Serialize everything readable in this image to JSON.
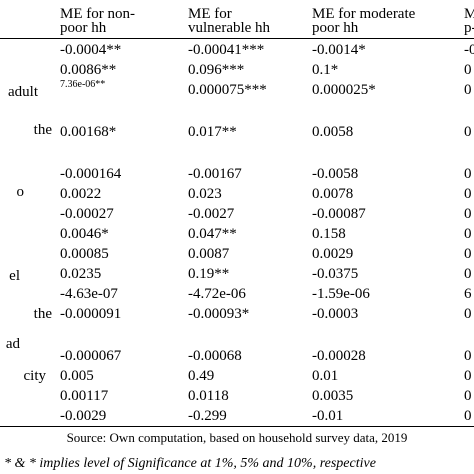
{
  "header": {
    "col1_line1": "ME  for  non-",
    "col1_line2": "poor hh",
    "col2_line1": "ME          for",
    "col2_line2": "vulnerable hh",
    "col3_line1": "ME  for  moderate",
    "col3_line2": "poor hh",
    "col4_line1": "M",
    "col4_line2": "p-"
  },
  "left_labels": [
    "adult",
    "the",
    "o",
    "el",
    "the",
    "ad",
    "city"
  ],
  "rows": [
    {
      "c1": "-0.0004**",
      "c2": "-0.00041***",
      "c3": "-0.0014*",
      "c4": "-0"
    },
    {
      "c1": "0.0086**",
      "c2": "0.096***",
      "c3": "0.1*",
      "c4": "0"
    },
    {
      "c1": "7.36e-06**",
      "c2": "0.000075***",
      "c3": "0.000025*",
      "c4": "0"
    },
    {
      "c1": "0.00168*",
      "c2": "0.017**",
      "c3": "0.0058",
      "c4": "0"
    },
    {
      "c1": "-0.000164",
      "c2": "-0.00167",
      "c3": "-0.0058",
      "c4": "0"
    },
    {
      "c1": "0.0022",
      "c2": "0.023",
      "c3": "0.0078",
      "c4": "0"
    },
    {
      "c1": "-0.00027",
      "c2": "-0.0027",
      "c3": "-0.00087",
      "c4": "0"
    },
    {
      "c1": "0.0046*",
      "c2": "0.047**",
      "c3": "0.158",
      "c4": "0"
    },
    {
      "c1": "0.00085",
      "c2": "0.0087",
      "c3": "0.0029",
      "c4": "0"
    },
    {
      "c1": "0.0235",
      "c2": "0.19**",
      "c3": "-0.0375",
      "c4": "0"
    },
    {
      "c1": "-4.63e-07",
      "c2": "-4.72e-06",
      "c3": "-1.59e-06",
      "c4": "6"
    },
    {
      "c1": "-0.000091",
      "c2": "-0.00093*",
      "c3": "-0.0003",
      "c4": "0"
    },
    {
      "c1": "-0.000067",
      "c2": "-0.00068",
      "c3": "-0.00028",
      "c4": "0"
    },
    {
      "c1": "0.005",
      "c2": "0.49",
      "c3": "0.01",
      "c4": "0"
    },
    {
      "c1": "0.00117",
      "c2": "0.0118",
      "c3": "0.0035",
      "c4": "0"
    },
    {
      "c1": "-0.0029",
      "c2": "-0.299",
      "c3": "-0.01",
      "c4": "0"
    }
  ],
  "source": "Source: Own computation, based on household survey data, 2019",
  "note": "* & * implies level of Significance at 1%, 5% and 10%, respective"
}
